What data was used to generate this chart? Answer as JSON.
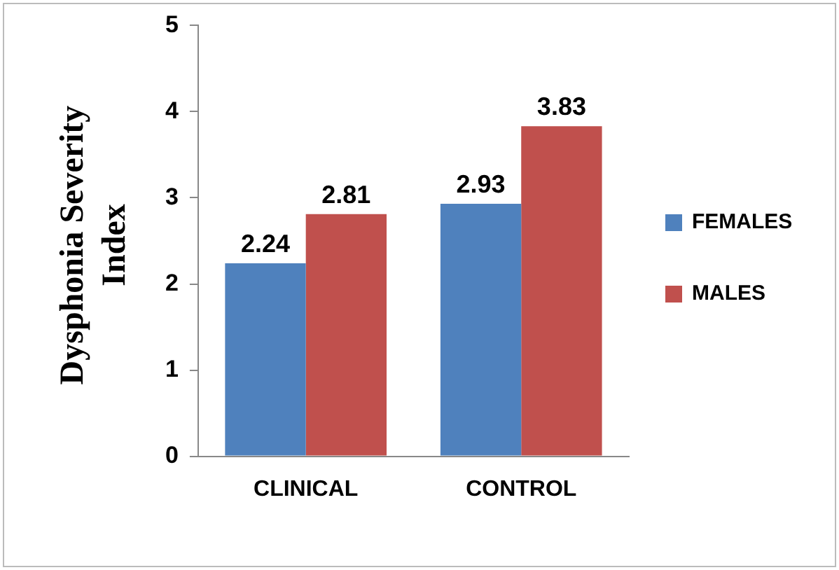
{
  "chart_data": {
    "type": "bar",
    "ylabel": "Dysphonia Severity Index",
    "categories": [
      "CLINICAL",
      "CONTROL"
    ],
    "series": [
      {
        "name": "FEMALES",
        "color": "#4f81bd",
        "values": [
          2.24,
          2.93
        ]
      },
      {
        "name": "MALES",
        "color": "#c0504d",
        "values": [
          2.81,
          3.83
        ]
      }
    ],
    "ylim": [
      0,
      5
    ],
    "yticks": [
      0,
      1,
      2,
      3,
      4,
      5
    ],
    "grid": false,
    "legend": "right",
    "data_labels": true
  }
}
